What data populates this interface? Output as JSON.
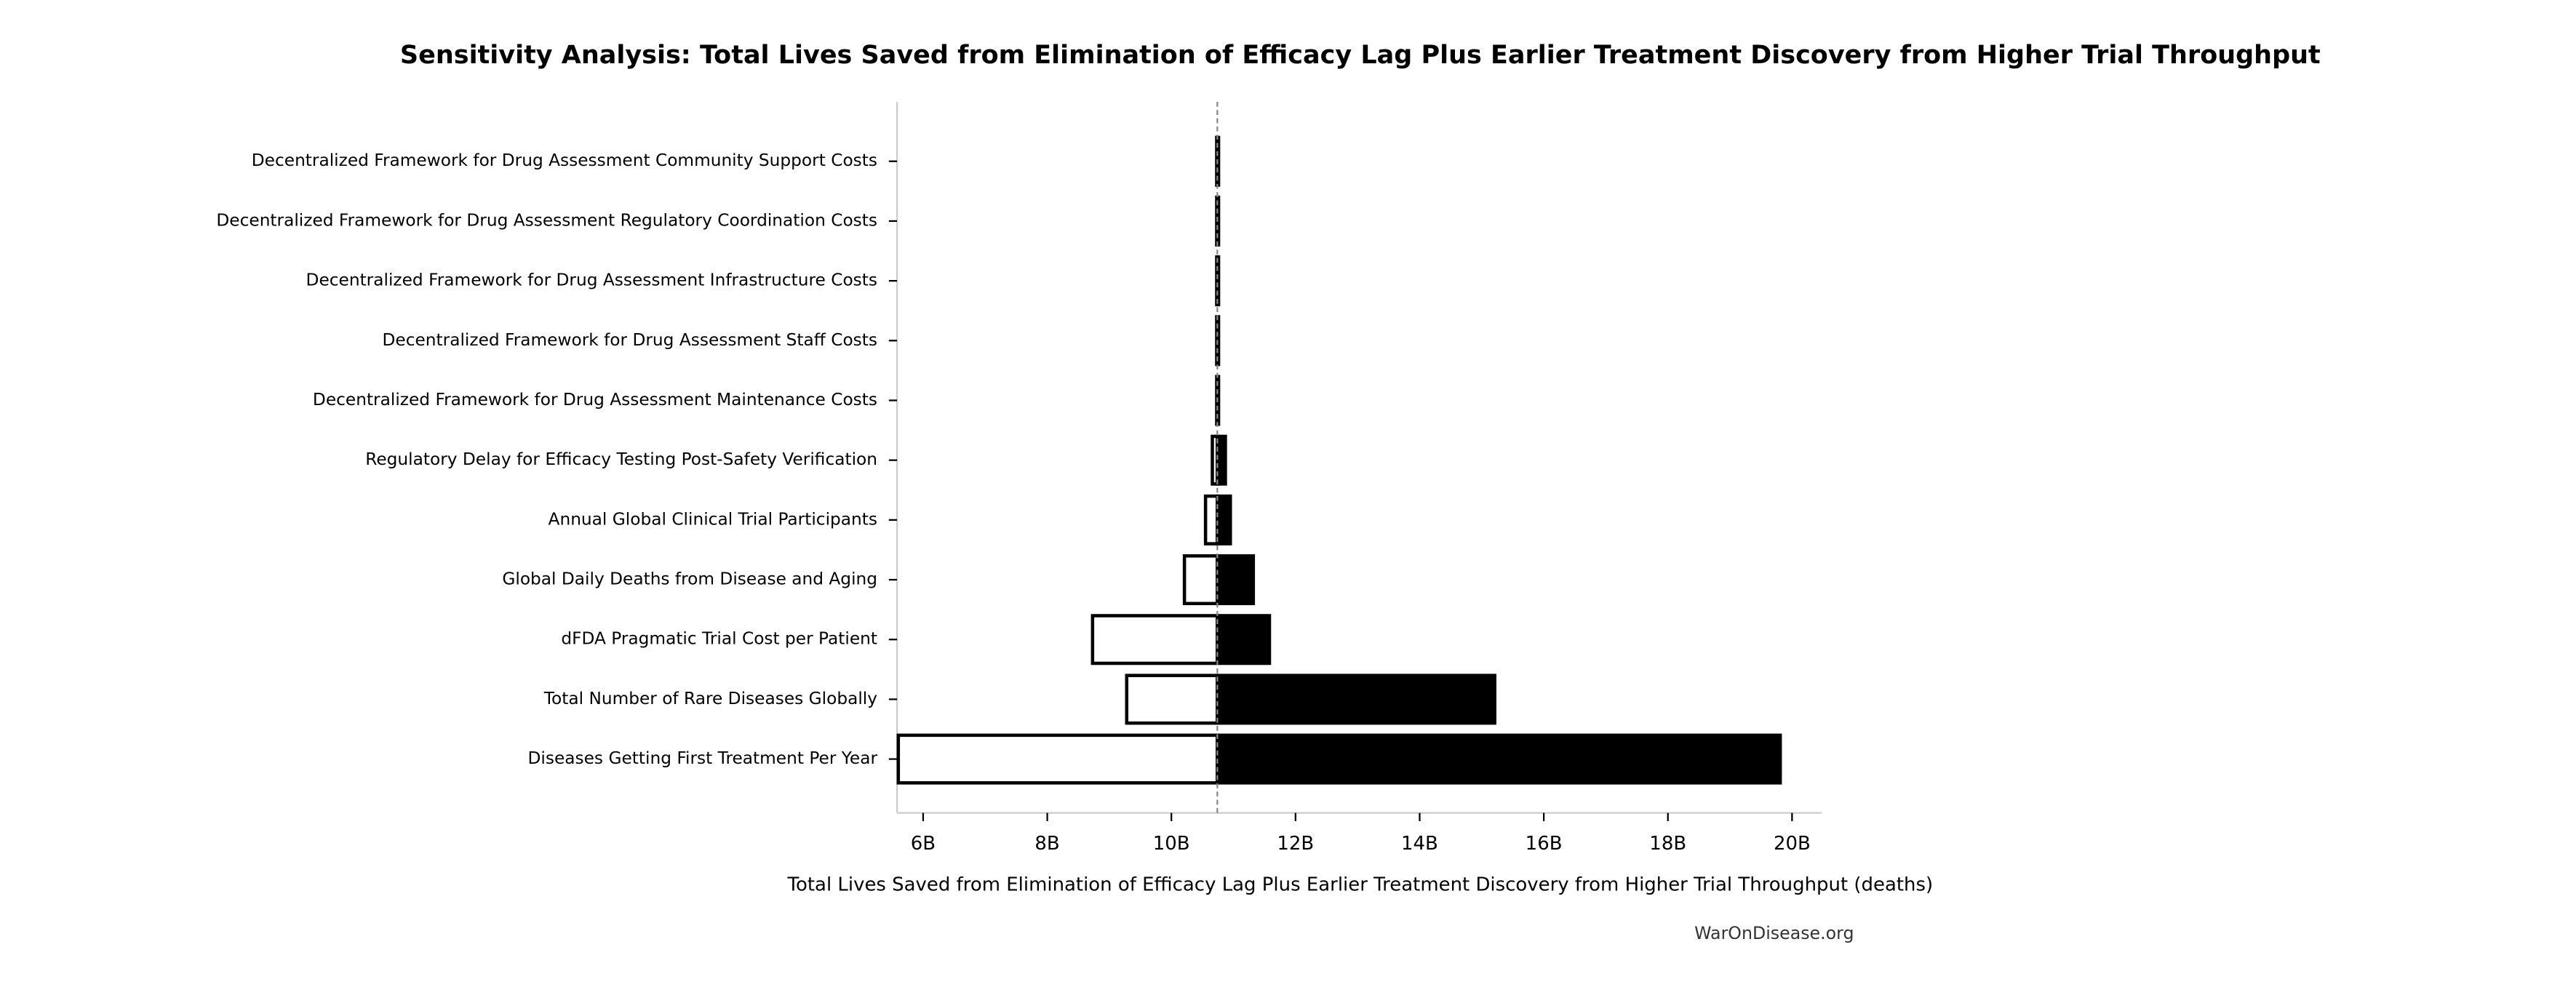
{
  "chart_data": {
    "type": "tornado",
    "title": "Sensitivity Analysis: Total Lives Saved from Elimination of Efficacy Lag Plus Earlier Treatment Discovery from Higher Trial Throughput",
    "x_label": "Total Lives Saved from Elimination of Efficacy Lag Plus Earlier Treatment Discovery from Higher Trial Throughput (deaths)",
    "source": "WarOnDisease.org",
    "categories": [
      "Decentralized Framework for Drug Assessment Community Support Costs",
      "Decentralized Framework for Drug Assessment Regulatory Coordination Costs",
      "Decentralized Framework for Drug Assessment Infrastructure Costs",
      "Decentralized Framework for Drug Assessment Staff Costs",
      "Decentralized Framework for Drug Assessment Maintenance Costs",
      "Regulatory Delay for Efficacy Testing Post-Safety Verification",
      "Annual Global Clinical Trial Participants",
      "Global Daily Deaths from Disease and Aging",
      "dFDA Pragmatic Trial Cost per Patient",
      "Total Number of Rare Diseases Globally",
      "Diseases Getting First Treatment Per Year"
    ],
    "low_values": [
      10730000000,
      10730000000,
      10730000000,
      10730000000,
      10730000000,
      10660000000,
      10550000000,
      10210000000,
      8730000000,
      9280000000,
      5600000000
    ],
    "high_values": [
      10760000000,
      10760000000,
      10760000000,
      10760000000,
      10760000000,
      10870000000,
      10950000000,
      11320000000,
      11580000000,
      15210000000,
      19810000000
    ],
    "baseline": 10740000000,
    "low_color": "#ffffff",
    "high_color": "#000000",
    "xlim": [
      5580000000,
      20480000000
    ],
    "xticks": [
      {
        "value": 6000000000,
        "label": "6B"
      },
      {
        "value": 8000000000,
        "label": "8B"
      },
      {
        "value": 10000000000,
        "label": "10B"
      },
      {
        "value": 12000000000,
        "label": "12B"
      },
      {
        "value": 14000000000,
        "label": "14B"
      },
      {
        "value": 16000000000,
        "label": "16B"
      },
      {
        "value": 18000000000,
        "label": "18B"
      },
      {
        "value": 20000000000,
        "label": "20B"
      }
    ]
  }
}
